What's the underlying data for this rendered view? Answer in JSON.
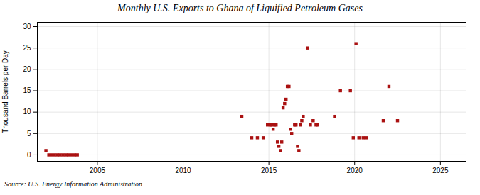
{
  "chart_data": {
    "type": "scatter",
    "title": "Monthly U.S. Exports to Ghana of Liquified Petroleum Gases",
    "ylabel": "Thousand Barrels per Day",
    "source": "Source: U.S. Energy Information Administration",
    "color": "#aa1111",
    "marker": "square",
    "grid": true,
    "xlim": [
      2001.5,
      2026.5
    ],
    "ylim": [
      -1.5,
      31
    ],
    "xticks": [
      2005,
      2010,
      2015,
      2020,
      2025
    ],
    "yticks": [
      0,
      5,
      10,
      15,
      20,
      25,
      30
    ],
    "x": [
      2002.0,
      2002.17,
      2002.33,
      2002.5,
      2002.67,
      2002.83,
      2003.0,
      2003.17,
      2003.33,
      2003.5,
      2003.67,
      2003.83,
      2013.42,
      2014.0,
      2014.33,
      2014.67,
      2014.92,
      2015.08,
      2015.17,
      2015.25,
      2015.33,
      2015.42,
      2015.5,
      2015.58,
      2015.67,
      2015.75,
      2015.83,
      2015.92,
      2016.0,
      2016.08,
      2016.17,
      2016.25,
      2016.33,
      2016.5,
      2016.58,
      2016.67,
      2016.75,
      2016.83,
      2016.92,
      2017.0,
      2017.25,
      2017.42,
      2017.58,
      2017.75,
      2017.83,
      2018.83,
      2019.17,
      2019.75,
      2019.92,
      2020.08,
      2020.25,
      2020.5,
      2020.67,
      2021.67,
      2022.0,
      2022.5
    ],
    "values": [
      1.0,
      0.0,
      0.0,
      0.0,
      0.0,
      0.0,
      0.0,
      0.0,
      0.0,
      0.0,
      0.0,
      0.0,
      9.0,
      4.0,
      4.0,
      4.0,
      7.0,
      7.0,
      7.0,
      6.0,
      7.0,
      7.0,
      3.0,
      2.0,
      1.0,
      3.0,
      11.0,
      12.0,
      13.0,
      16.0,
      16.0,
      6.0,
      5.0,
      7.0,
      7.0,
      2.0,
      1.0,
      7.0,
      8.0,
      9.0,
      25.0,
      7.0,
      8.0,
      7.0,
      7.0,
      9.0,
      15.0,
      15.0,
      4.0,
      26.0,
      4.0,
      4.0,
      4.0,
      8.0,
      16.0,
      8.0
    ]
  }
}
